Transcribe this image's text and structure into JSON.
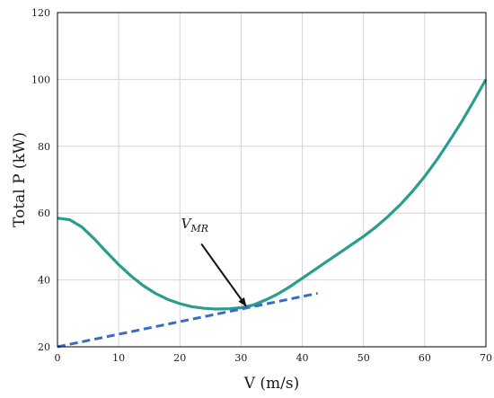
{
  "chart_data": {
    "type": "line",
    "xlabel": "V (m/s)",
    "ylabel": "Total P (kW)",
    "xlim": [
      0,
      70
    ],
    "ylim": [
      20,
      120
    ],
    "xticks": [
      0,
      10,
      20,
      30,
      40,
      50,
      60,
      70
    ],
    "yticks": [
      20,
      40,
      60,
      80,
      100,
      120
    ],
    "grid": true,
    "series": [
      {
        "style": "solid",
        "color": "#2a9d8f",
        "x": [
          0,
          2,
          4,
          6,
          8,
          10,
          12,
          14,
          16,
          18,
          20,
          22,
          24,
          26,
          28,
          30,
          32,
          34,
          36,
          38,
          40,
          42,
          44,
          46,
          48,
          50,
          52,
          54,
          56,
          58,
          60,
          62,
          64,
          66,
          68,
          70
        ],
        "y": [
          58.5,
          58.0,
          55.8,
          52.3,
          48.4,
          44.6,
          41.2,
          38.3,
          36.0,
          34.2,
          32.9,
          32.0,
          31.5,
          31.3,
          31.4,
          31.7,
          32.5,
          34.0,
          35.8,
          38.0,
          40.5,
          43.0,
          45.5,
          48.0,
          50.5,
          53.0,
          55.8,
          59.0,
          62.5,
          66.5,
          71.0,
          76.0,
          81.5,
          87.2,
          93.5,
          100.0
        ]
      },
      {
        "style": "dashed",
        "color": "#3b6bc4",
        "x": [
          0,
          42.5
        ],
        "y": [
          20,
          36.0
        ]
      }
    ],
    "annotations": [
      {
        "text": "V",
        "subscript": "MR",
        "text_x": 20.2,
        "text_y": 55.5,
        "arrow_from": [
          23.5,
          50.8
        ],
        "arrow_to": [
          30.8,
          32.2
        ]
      }
    ]
  }
}
